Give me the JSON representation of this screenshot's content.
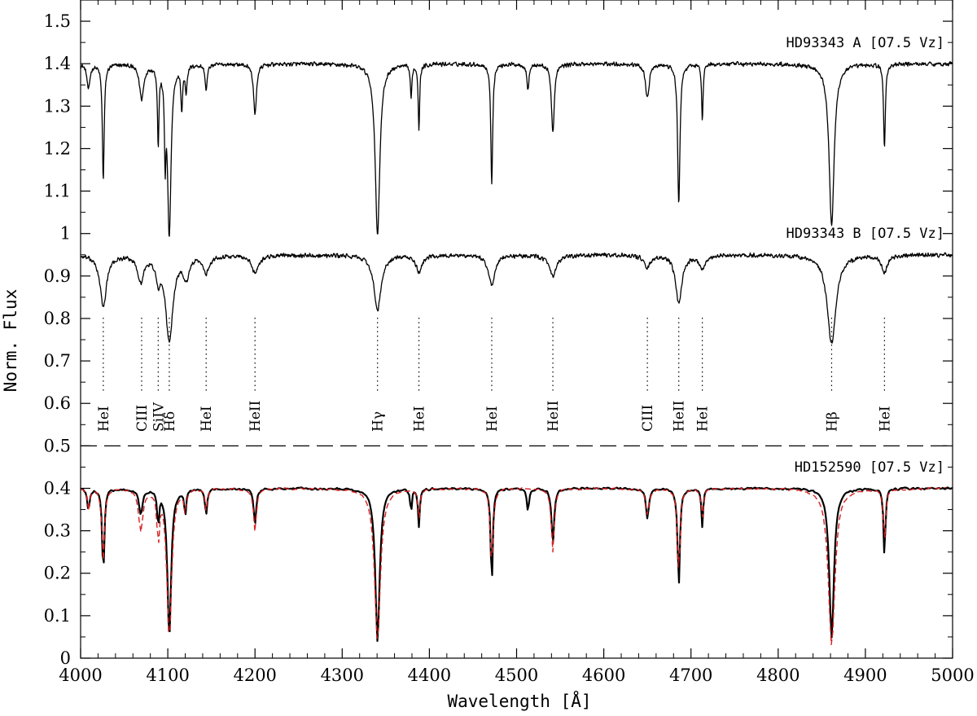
{
  "chart_data": {
    "type": "line",
    "xlabel": "Wavelength [Å]",
    "ylabel": "Norm. Flux",
    "xlim": [
      4000,
      5000
    ],
    "ylim": [
      0,
      1.55
    ],
    "x_ticks": [
      4000,
      4100,
      4200,
      4300,
      4400,
      4500,
      4600,
      4700,
      4800,
      4900,
      5000
    ],
    "y_ticks": [
      0,
      0.1,
      0.2,
      0.3,
      0.4,
      0.5,
      0.6,
      0.7,
      0.8,
      0.9,
      1,
      1.1,
      1.2,
      1.3,
      1.4,
      1.5
    ],
    "y_tick_labels": [
      "0",
      "0.1",
      "0.2",
      "0.3",
      "0.4",
      "0.5",
      "0.6",
      "0.7",
      "0.8",
      "0.9",
      "1",
      "1.1",
      "1.2",
      "1.3",
      "1.4",
      "1.5"
    ],
    "separator_y": 0.5,
    "series": [
      {
        "name": "HD93343 A [O7.5 Vz]",
        "continuum": 1.4,
        "color": "#000000",
        "line_style": "solid",
        "lines": [
          {
            "x": 4009,
            "depth": 0.06,
            "width": 2.0
          },
          {
            "x": 4026,
            "depth": 0.27,
            "width": 1.3
          },
          {
            "x": 4070,
            "depth": 0.08,
            "width": 3.0
          },
          {
            "x": 4089,
            "depth": 0.18,
            "width": 1.0
          },
          {
            "x": 4097,
            "depth": 0.18,
            "width": 1.0
          },
          {
            "x": 4101.7,
            "depth": 0.4,
            "width": 2.4
          },
          {
            "x": 4116,
            "depth": 0.1,
            "width": 1.2
          },
          {
            "x": 4121,
            "depth": 0.06,
            "width": 1.2
          },
          {
            "x": 4144,
            "depth": 0.06,
            "width": 1.5
          },
          {
            "x": 4200,
            "depth": 0.12,
            "width": 2.0
          },
          {
            "x": 4340.5,
            "depth": 0.4,
            "width": 3.2
          },
          {
            "x": 4379,
            "depth": 0.08,
            "width": 1.0
          },
          {
            "x": 4388,
            "depth": 0.15,
            "width": 1.0
          },
          {
            "x": 4471.5,
            "depth": 0.28,
            "width": 1.3
          },
          {
            "x": 4513,
            "depth": 0.06,
            "width": 1.5
          },
          {
            "x": 4541.6,
            "depth": 0.16,
            "width": 2.0
          },
          {
            "x": 4650,
            "depth": 0.08,
            "width": 2.5
          },
          {
            "x": 4686,
            "depth": 0.33,
            "width": 1.6
          },
          {
            "x": 4713,
            "depth": 0.13,
            "width": 1.0
          },
          {
            "x": 4861.3,
            "depth": 0.38,
            "width": 3.5
          },
          {
            "x": 4921.9,
            "depth": 0.2,
            "width": 1.2
          }
        ]
      },
      {
        "name": "HD93343 B [O7.5 Vz]",
        "continuum": 0.95,
        "color": "#000000",
        "line_style": "solid",
        "lines": [
          {
            "x": 4026,
            "depth": 0.12,
            "width": 4.5
          },
          {
            "x": 4069,
            "depth": 0.06,
            "width": 4.0
          },
          {
            "x": 4089,
            "depth": 0.05,
            "width": 3.0
          },
          {
            "x": 4101.7,
            "depth": 0.2,
            "width": 5.0
          },
          {
            "x": 4121,
            "depth": 0.05,
            "width": 4.0
          },
          {
            "x": 4144,
            "depth": 0.04,
            "width": 4.0
          },
          {
            "x": 4200,
            "depth": 0.04,
            "width": 5.0
          },
          {
            "x": 4340.5,
            "depth": 0.13,
            "width": 5.0
          },
          {
            "x": 4388,
            "depth": 0.04,
            "width": 4.0
          },
          {
            "x": 4471.5,
            "depth": 0.07,
            "width": 4.5
          },
          {
            "x": 4541.6,
            "depth": 0.05,
            "width": 5.0
          },
          {
            "x": 4650,
            "depth": 0.03,
            "width": 4.0
          },
          {
            "x": 4686,
            "depth": 0.11,
            "width": 4.5
          },
          {
            "x": 4713,
            "depth": 0.03,
            "width": 4.0
          },
          {
            "x": 4861.3,
            "depth": 0.21,
            "width": 6.0
          },
          {
            "x": 4921.9,
            "depth": 0.04,
            "width": 4.0
          }
        ]
      },
      {
        "name": "HD152590 [O7.5 Vz]",
        "continuum": 0.4,
        "color": "#000000",
        "line_style": "solid",
        "lines": [
          {
            "x": 4009,
            "depth": 0.05,
            "width": 1.5
          },
          {
            "x": 4026,
            "depth": 0.2,
            "width": 1.5
          },
          {
            "x": 4069,
            "depth": 0.06,
            "width": 2.5
          },
          {
            "x": 4089,
            "depth": 0.08,
            "width": 1.2
          },
          {
            "x": 4101.7,
            "depth": 0.35,
            "width": 2.6
          },
          {
            "x": 4120,
            "depth": 0.06,
            "width": 1.2
          },
          {
            "x": 4144,
            "depth": 0.06,
            "width": 1.5
          },
          {
            "x": 4200,
            "depth": 0.08,
            "width": 1.8
          },
          {
            "x": 4340.5,
            "depth": 0.36,
            "width": 3.0
          },
          {
            "x": 4379,
            "depth": 0.06,
            "width": 1.0
          },
          {
            "x": 4388,
            "depth": 0.09,
            "width": 1.2
          },
          {
            "x": 4471.5,
            "depth": 0.23,
            "width": 1.4
          },
          {
            "x": 4513,
            "depth": 0.05,
            "width": 1.5
          },
          {
            "x": 4541.6,
            "depth": 0.13,
            "width": 1.8
          },
          {
            "x": 4650,
            "depth": 0.07,
            "width": 2.0
          },
          {
            "x": 4686,
            "depth": 0.23,
            "width": 1.6
          },
          {
            "x": 4713,
            "depth": 0.09,
            "width": 1.2
          },
          {
            "x": 4861.3,
            "depth": 0.35,
            "width": 3.2
          },
          {
            "x": 4921.9,
            "depth": 0.16,
            "width": 1.3
          }
        ]
      },
      {
        "name": "",
        "continuum": 0.4,
        "color": "#d62020",
        "line_style": "dashed",
        "lines": [
          {
            "x": 4009,
            "depth": 0.05,
            "width": 1.5
          },
          {
            "x": 4026,
            "depth": 0.17,
            "width": 1.8
          },
          {
            "x": 4069,
            "depth": 0.1,
            "width": 3.0
          },
          {
            "x": 4089,
            "depth": 0.12,
            "width": 1.5
          },
          {
            "x": 4101.7,
            "depth": 0.36,
            "width": 3.2
          },
          {
            "x": 4120,
            "depth": 0.05,
            "width": 1.5
          },
          {
            "x": 4144,
            "depth": 0.05,
            "width": 1.5
          },
          {
            "x": 4200,
            "depth": 0.1,
            "width": 2.0
          },
          {
            "x": 4340.5,
            "depth": 0.36,
            "width": 4.0
          },
          {
            "x": 4388,
            "depth": 0.07,
            "width": 1.5
          },
          {
            "x": 4471.5,
            "depth": 0.2,
            "width": 1.8
          },
          {
            "x": 4541.6,
            "depth": 0.15,
            "width": 2.0
          },
          {
            "x": 4650,
            "depth": 0.06,
            "width": 2.5
          },
          {
            "x": 4686,
            "depth": 0.21,
            "width": 1.8
          },
          {
            "x": 4713,
            "depth": 0.07,
            "width": 1.5
          },
          {
            "x": 4861.3,
            "depth": 0.37,
            "width": 4.5
          },
          {
            "x": 4921.9,
            "depth": 0.13,
            "width": 1.6
          }
        ]
      }
    ],
    "line_ids": [
      {
        "label": "HeI",
        "x": 4026
      },
      {
        "label": "CIII",
        "x": 4070
      },
      {
        "label": "SiIV",
        "x": 4089
      },
      {
        "label": "Hδ",
        "x": 4101.7
      },
      {
        "label": "HeI",
        "x": 4144
      },
      {
        "label": "HeII",
        "x": 4200
      },
      {
        "label": "Hγ",
        "x": 4340.5
      },
      {
        "label": "HeI",
        "x": 4388
      },
      {
        "label": "HeI",
        "x": 4471.5
      },
      {
        "label": "HeII",
        "x": 4541.6
      },
      {
        "label": "CIII",
        "x": 4650
      },
      {
        "label": "HeII",
        "x": 4686
      },
      {
        "label": "HeI",
        "x": 4713
      },
      {
        "label": "Hβ",
        "x": 4861.3
      },
      {
        "label": "HeI",
        "x": 4921.9
      }
    ]
  }
}
